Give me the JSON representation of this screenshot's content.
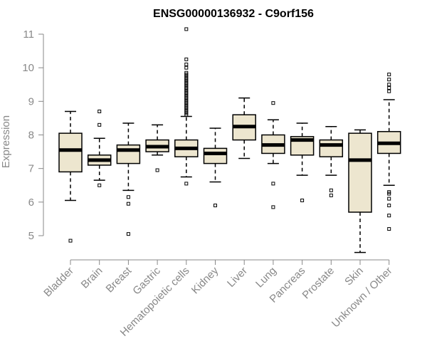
{
  "chart_data": {
    "type": "boxplot",
    "title": "ENSG00000136932 - C9orf156",
    "ylabel": "Expression",
    "xlabel": "",
    "ylim": [
      4.35,
      11.2
    ],
    "yticks": [
      5,
      6,
      7,
      8,
      9,
      10,
      11
    ],
    "grid": false,
    "box_fill": "#ede6cf",
    "outline_color": "#000000",
    "axis_color": "#888888",
    "categories": [
      "Bladder",
      "Brain",
      "Breast",
      "Gastric",
      "Hematopoietic cells",
      "Kidney",
      "Liver",
      "Lung",
      "Pancreas",
      "Prostate",
      "Skin",
      "Unknown / Other"
    ],
    "boxes": [
      {
        "q1": 6.9,
        "median": 7.55,
        "q3": 8.05,
        "whisker_low": 6.05,
        "whisker_high": 8.7,
        "outliers": [
          4.85
        ]
      },
      {
        "q1": 7.1,
        "median": 7.25,
        "q3": 7.4,
        "whisker_low": 6.65,
        "whisker_high": 7.9,
        "outliers": [
          6.5,
          8.3,
          8.7
        ]
      },
      {
        "q1": 7.15,
        "median": 7.55,
        "q3": 7.7,
        "whisker_low": 6.35,
        "whisker_high": 8.35,
        "outliers": [
          6.15,
          5.95,
          5.05
        ]
      },
      {
        "q1": 7.5,
        "median": 7.65,
        "q3": 7.85,
        "whisker_low": 7.4,
        "whisker_high": 8.3,
        "outliers": [
          6.95
        ]
      },
      {
        "q1": 7.35,
        "median": 7.6,
        "q3": 7.85,
        "whisker_low": 6.75,
        "whisker_high": 8.55,
        "outliers": [
          6.55,
          8.6,
          8.65,
          8.7,
          8.75,
          8.8,
          8.85,
          8.9,
          8.95,
          9.0,
          9.05,
          9.1,
          9.15,
          9.2,
          9.25,
          9.3,
          9.35,
          9.4,
          9.45,
          9.5,
          9.55,
          9.6,
          9.65,
          9.7,
          9.75,
          9.8,
          9.85,
          10.0,
          10.1,
          10.25,
          11.15
        ]
      },
      {
        "q1": 7.15,
        "median": 7.45,
        "q3": 7.6,
        "whisker_low": 6.6,
        "whisker_high": 8.2,
        "outliers": [
          5.9
        ]
      },
      {
        "q1": 7.85,
        "median": 8.25,
        "q3": 8.6,
        "whisker_low": 7.3,
        "whisker_high": 9.1,
        "outliers": []
      },
      {
        "q1": 7.45,
        "median": 7.7,
        "q3": 8.0,
        "whisker_low": 7.15,
        "whisker_high": 8.45,
        "outliers": [
          6.55,
          5.85,
          8.95
        ]
      },
      {
        "q1": 7.4,
        "median": 7.85,
        "q3": 7.95,
        "whisker_low": 6.8,
        "whisker_high": 8.35,
        "outliers": [
          6.05
        ]
      },
      {
        "q1": 7.35,
        "median": 7.7,
        "q3": 7.85,
        "whisker_low": 6.8,
        "whisker_high": 8.25,
        "outliers": [
          6.35,
          6.2
        ]
      },
      {
        "q1": 5.7,
        "median": 7.25,
        "q3": 8.05,
        "whisker_low": 4.5,
        "whisker_high": 8.15,
        "outliers": []
      },
      {
        "q1": 7.45,
        "median": 7.75,
        "q3": 8.1,
        "whisker_low": 6.5,
        "whisker_high": 9.05,
        "outliers": [
          6.3,
          6.1,
          5.9,
          5.6,
          5.2,
          9.3,
          9.4,
          9.5,
          9.65,
          9.8,
          6.25
        ]
      }
    ]
  }
}
